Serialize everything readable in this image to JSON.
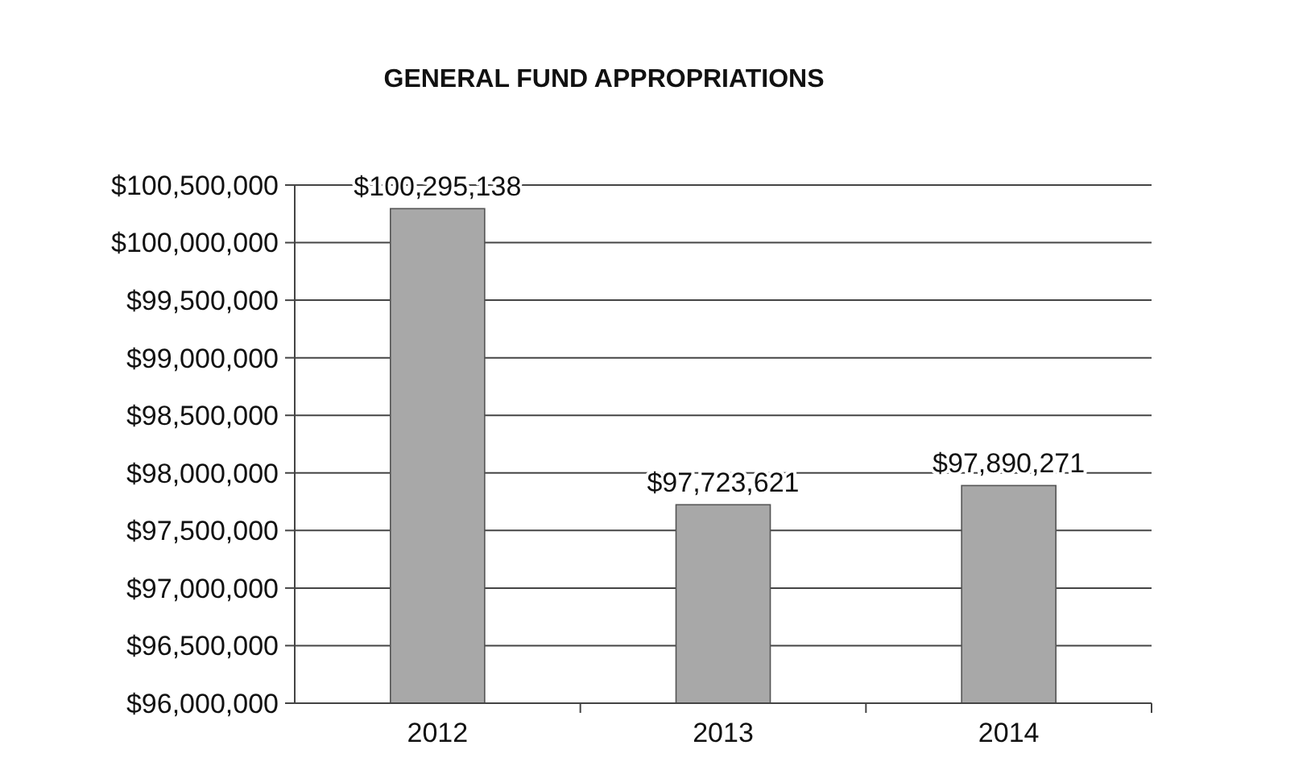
{
  "chart_data": {
    "type": "bar",
    "title": "GENERAL FUND APPROPRIATIONS",
    "categories": [
      "2012",
      "2013",
      "2014"
    ],
    "values": [
      100295138,
      97723621,
      97890271
    ],
    "color": "#a8a8a8",
    "value_labels": [
      "$100,295,138",
      "$97,723,621",
      "$97,890,271"
    ],
    "ylim": [
      96000000,
      100500000
    ],
    "yticks": [
      {
        "value": 96000000,
        "label": "$96,000,000"
      },
      {
        "value": 96500000,
        "label": "$96,500,000"
      },
      {
        "value": 97000000,
        "label": "$97,000,000"
      },
      {
        "value": 97500000,
        "label": "$97,500,000"
      },
      {
        "value": 98000000,
        "label": "$98,000,000"
      },
      {
        "value": 98500000,
        "label": "$98,500,000"
      },
      {
        "value": 99000000,
        "label": "$99,000,000"
      },
      {
        "value": 99500000,
        "label": "$99,500,000"
      },
      {
        "value": 100000000,
        "label": "$100,000,000"
      },
      {
        "value": 100500000,
        "label": "$100,500,000"
      }
    ],
    "grid": "y"
  }
}
